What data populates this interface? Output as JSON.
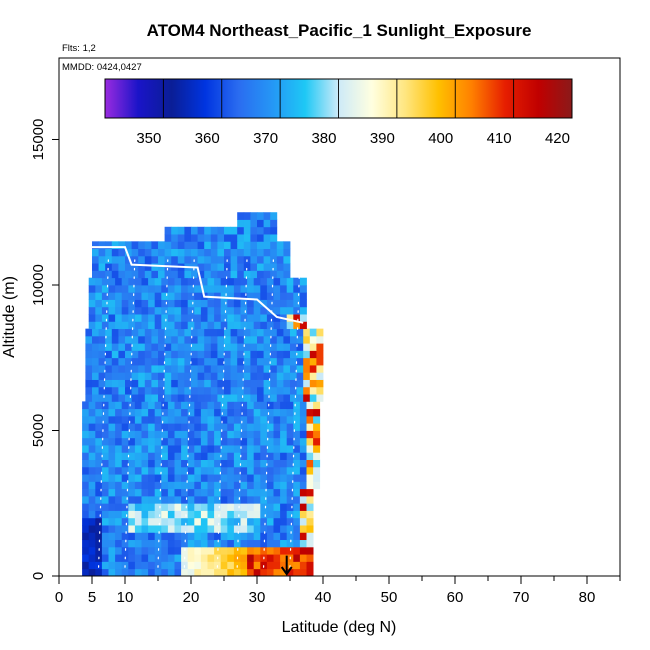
{
  "title": "ATOM4 Northeast_Pacific_1 Sunlight_Exposure",
  "flights_label": "Flts: 1,2",
  "date_label": "MMDD: 0424,0427",
  "chart_data": {
    "type": "heatmap",
    "title": "ATOM4 Northeast_Pacific_1 Sunlight_Exposure",
    "xlabel": "Latitude (deg N)",
    "ylabel": "Altitude (m)",
    "xlim": [
      0,
      85
    ],
    "ylim": [
      0,
      17800
    ],
    "xticks": [
      0,
      5,
      10,
      20,
      30,
      40,
      50,
      60,
      70,
      80
    ],
    "yticks": [
      0,
      5000,
      10000,
      15000
    ],
    "colorbar": {
      "min": 340,
      "max": 420,
      "ticks": [
        350,
        360,
        370,
        380,
        390,
        400,
        410,
        420
      ],
      "colors": [
        "#9a2be0",
        "#1a14c8",
        "#0a1e96",
        "#0034e0",
        "#2a6cf0",
        "#2596f5",
        "#1ec8f5",
        "#cdeaf8",
        "#ffffe0",
        "#ffe680",
        "#ffc000",
        "#ff7f00",
        "#e61e00",
        "#c00000",
        "#8b1a1a"
      ]
    },
    "profile_latitude_ranges": [
      {
        "alt_min": 0,
        "alt_max": 1000,
        "lat_min": 3.5,
        "lat_max": 38.0
      },
      {
        "alt_min": 1000,
        "alt_max": 3000,
        "lat_min": 3.5,
        "lat_max": 38.5
      },
      {
        "alt_min": 3000,
        "alt_max": 6000,
        "lat_min": 3.5,
        "lat_max": 39.5
      },
      {
        "alt_min": 6000,
        "alt_max": 8500,
        "lat_min": 4.0,
        "lat_max": 39.5
      },
      {
        "alt_min": 8500,
        "alt_max": 10200,
        "lat_min": 4.5,
        "lat_max": 37.0
      },
      {
        "alt_min": 10200,
        "alt_max": 11500,
        "lat_min": 5.0,
        "lat_max": 35.0
      },
      {
        "alt_min": 11500,
        "alt_max": 12000,
        "lat_min": 16.0,
        "lat_max": 32.5
      },
      {
        "alt_min": 12000,
        "alt_max": 12500,
        "lat_min": 27.0,
        "lat_max": 32.5
      }
    ],
    "flight_track": [
      {
        "lat": 5,
        "alt": 11300
      },
      {
        "lat": 10,
        "alt": 11300
      },
      {
        "lat": 11,
        "alt": 10700
      },
      {
        "lat": 21,
        "alt": 10600
      },
      {
        "lat": 22,
        "alt": 9600
      },
      {
        "lat": 30,
        "alt": 9500
      },
      {
        "lat": 33,
        "alt": 8900
      },
      {
        "lat": 37,
        "alt": 8700
      }
    ],
    "marker": {
      "lat": 34.5,
      "alt": 700,
      "symbol": "arrow-down"
    }
  }
}
